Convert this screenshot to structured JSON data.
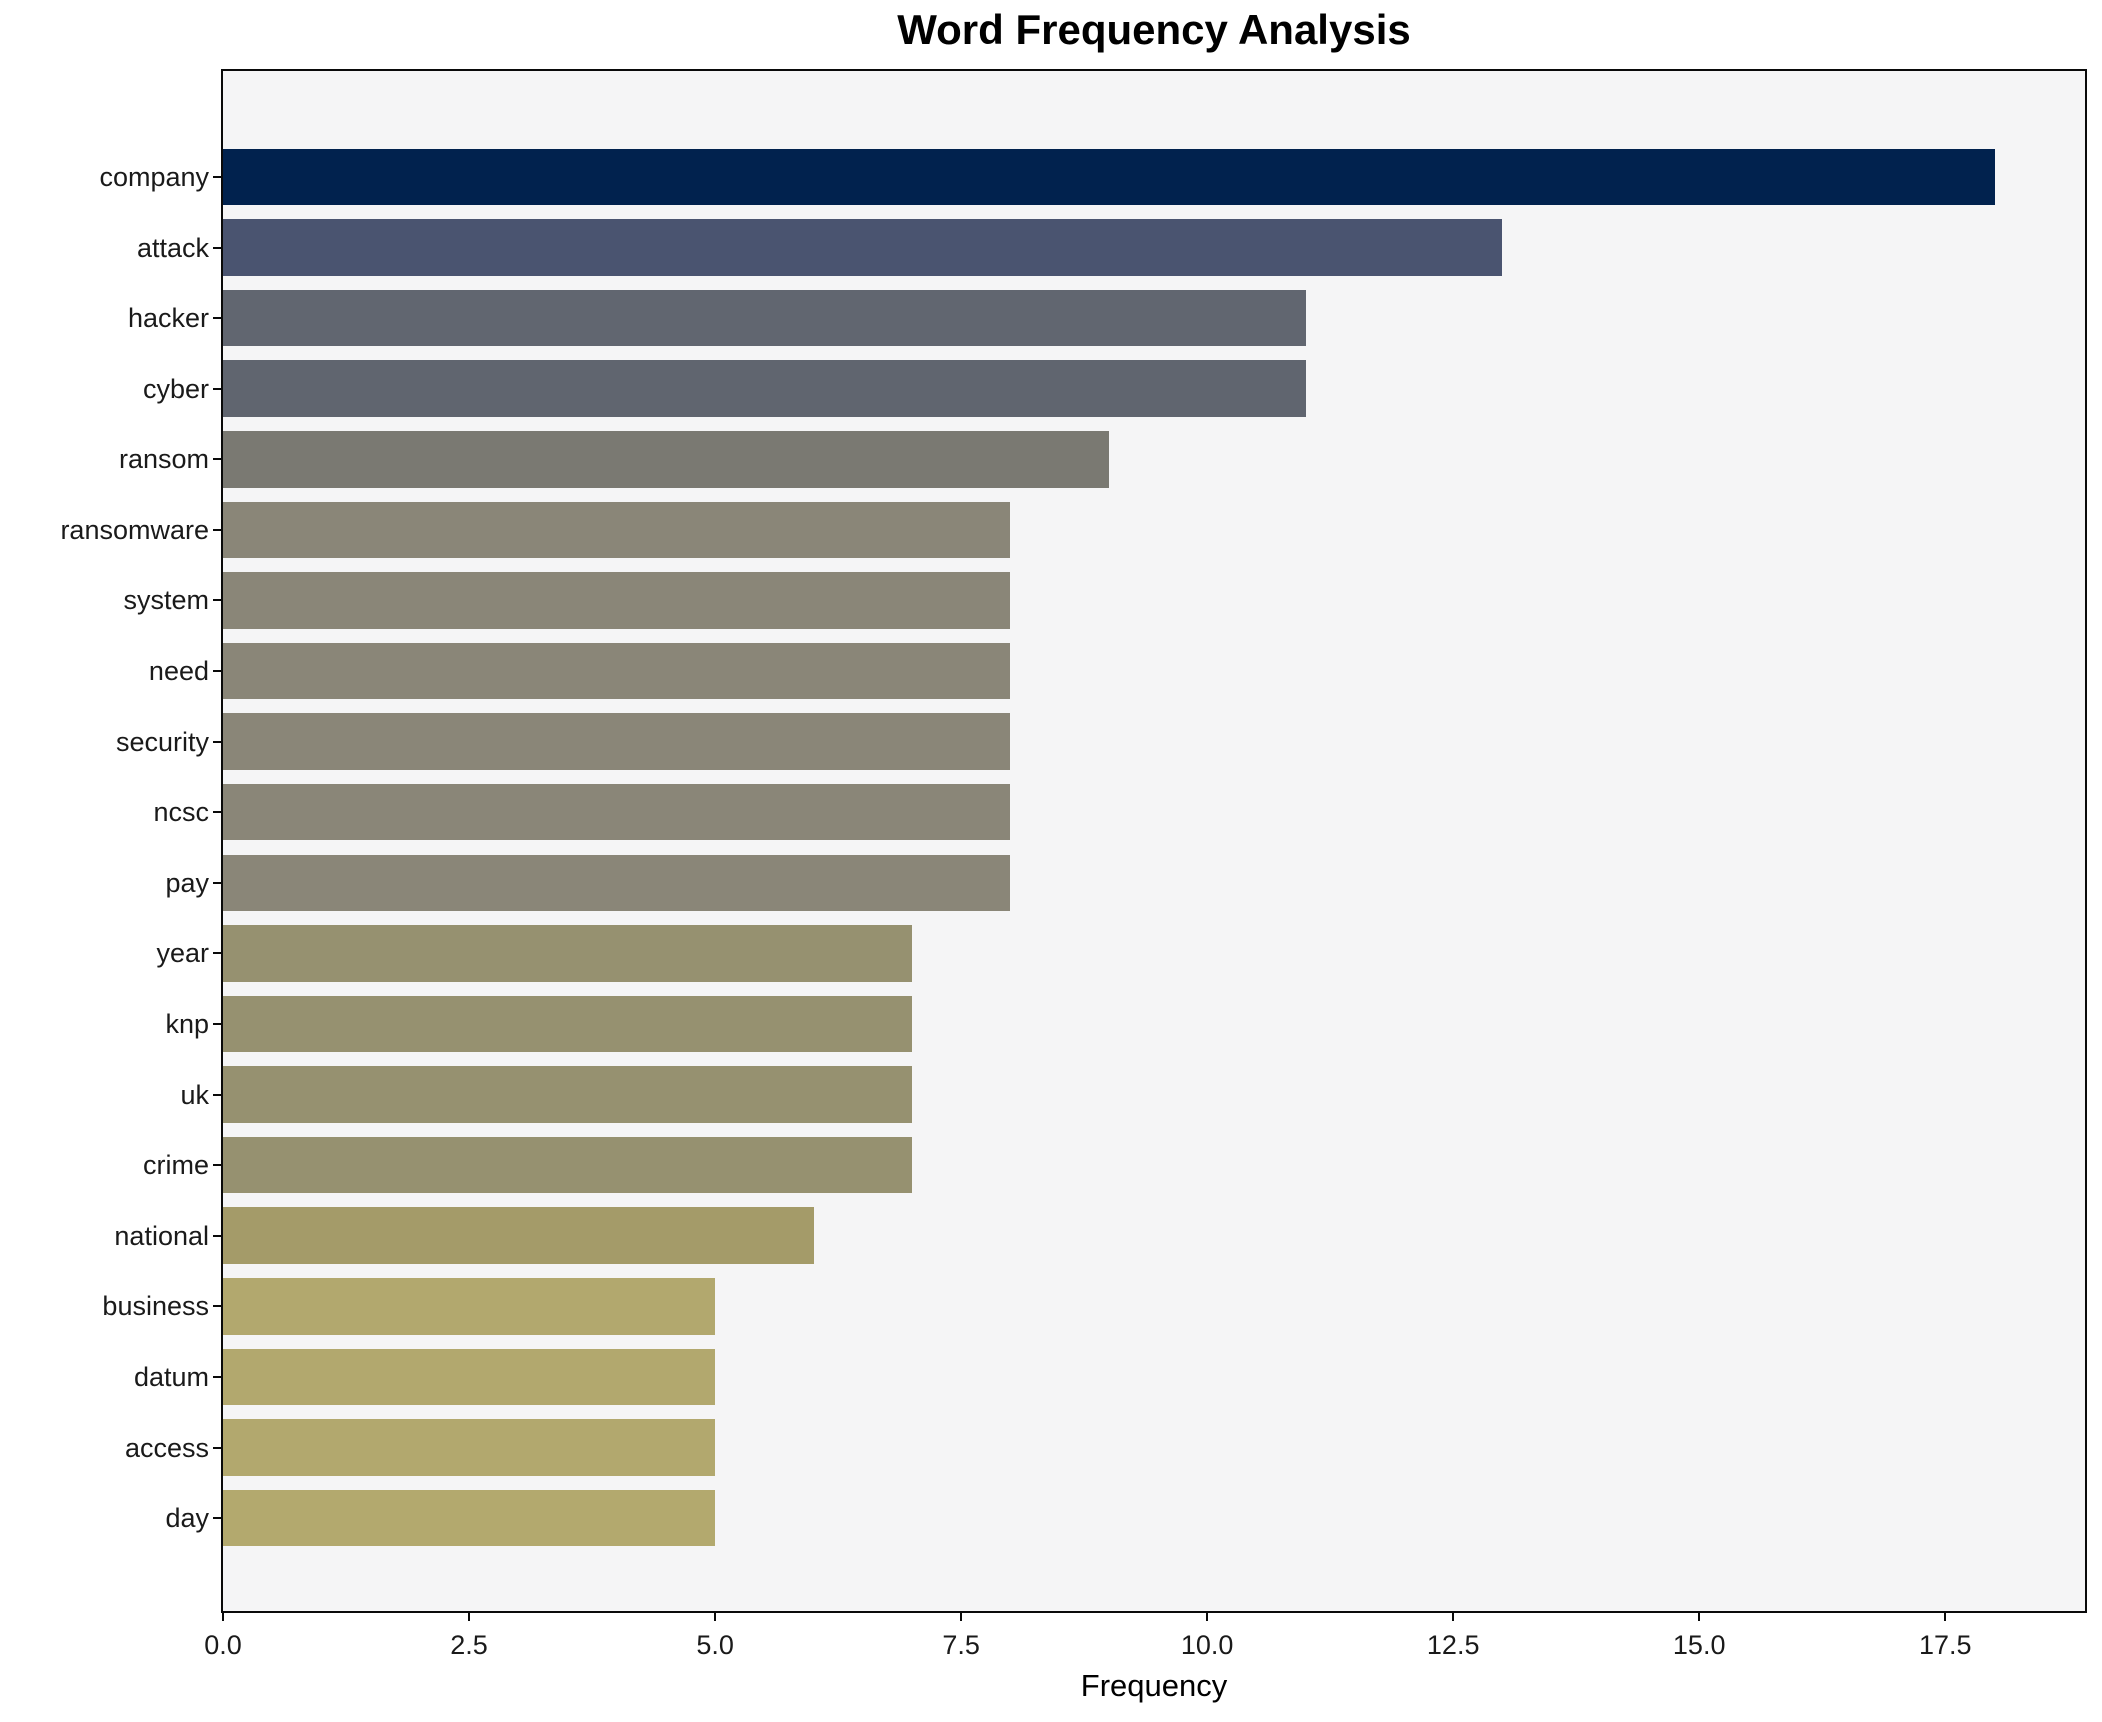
{
  "chart_data": {
    "type": "bar",
    "orientation": "horizontal",
    "title": "Word Frequency Analysis",
    "xlabel": "Frequency",
    "ylabel": "",
    "categories": [
      "company",
      "attack",
      "hacker",
      "cyber",
      "ransom",
      "ransomware",
      "system",
      "need",
      "security",
      "ncsc",
      "pay",
      "year",
      "knp",
      "uk",
      "crime",
      "national",
      "business",
      "datum",
      "access",
      "day"
    ],
    "values": [
      18,
      13,
      11,
      11,
      9,
      8,
      8,
      8,
      8,
      8,
      8,
      7,
      7,
      7,
      7,
      6,
      5,
      5,
      5,
      5
    ],
    "bar_colors": [
      "#01224e",
      "#4a5470",
      "#616670",
      "#60656f",
      "#7a7972",
      "#8a8678",
      "#8a8678",
      "#8a8678",
      "#8a8678",
      "#8a8678",
      "#8a8678",
      "#969170",
      "#969170",
      "#969170",
      "#969170",
      "#a49b69",
      "#b2a86e",
      "#b2a86e",
      "#b2a86e",
      "#b3a96e"
    ],
    "xlim": [
      0,
      18.92
    ],
    "xticks": [
      0,
      2.5,
      5,
      7.5,
      10,
      12.5,
      15,
      17.5
    ],
    "xtick_labels": [
      "0.0",
      "2.5",
      "5.0",
      "7.5",
      "10.0",
      "12.5",
      "15.0",
      "17.5"
    ],
    "grid": false,
    "legend": null,
    "colors": {
      "figure_bg": "#ffffff",
      "plot_bg": "#f5f5f6",
      "spine": "#0a0a0a",
      "text": "#000000"
    }
  }
}
